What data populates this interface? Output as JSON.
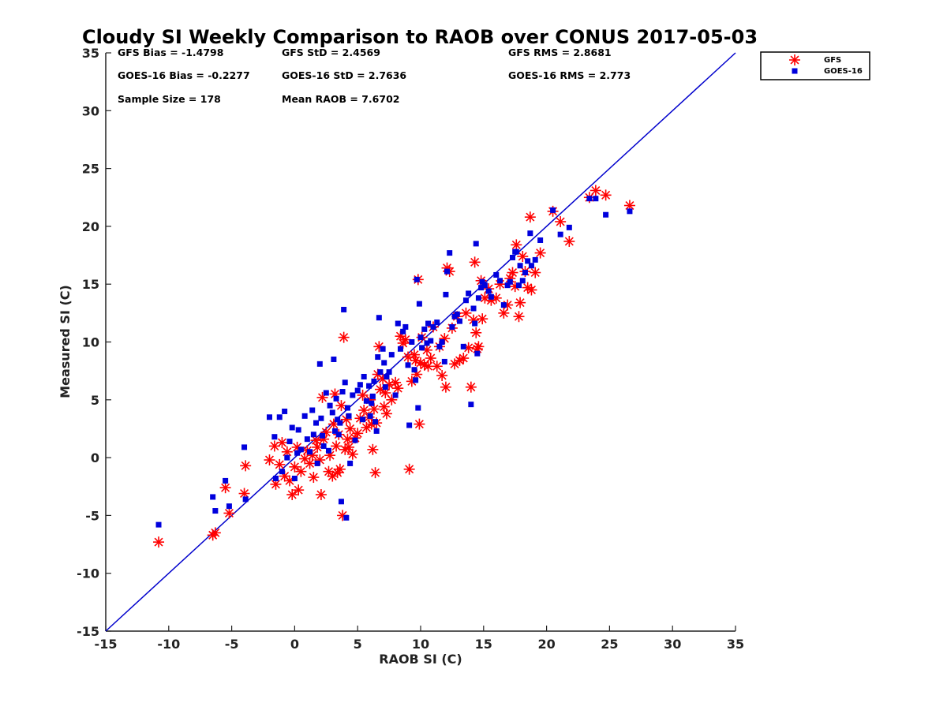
{
  "chart_data": {
    "type": "scatter",
    "title": "Cloudy SI Weekly Comparison to RAOB over CONUS 2017-05-03",
    "xlabel": "RAOB SI (C)",
    "ylabel": "Measured SI (C)",
    "xlim": [
      -15,
      35
    ],
    "ylim": [
      -15,
      35
    ],
    "xticks": [
      -15,
      -10,
      -5,
      0,
      5,
      10,
      15,
      20,
      25,
      30,
      35
    ],
    "yticks": [
      -15,
      -10,
      -5,
      0,
      5,
      10,
      15,
      20,
      25,
      30,
      35
    ],
    "grid": false,
    "legend_position": "top-right-outside",
    "reference_line": {
      "from": [
        -15,
        -15
      ],
      "to": [
        35,
        35
      ],
      "color": "#0000cc"
    },
    "stats": [
      {
        "name": "gfs-bias",
        "text": "GFS Bias = -1.4798"
      },
      {
        "name": "gfs-std",
        "text": "GFS StD = 2.4569"
      },
      {
        "name": "gfs-rms",
        "text": "GFS RMS = 2.8681"
      },
      {
        "name": "goes-bias",
        "text": "GOES-16 Bias = -0.2277"
      },
      {
        "name": "goes-std",
        "text": "GOES-16 StD = 2.7636"
      },
      {
        "name": "goes-rms",
        "text": "GOES-16 RMS = 2.773"
      },
      {
        "name": "sample-size",
        "text": "Sample Size = 178"
      },
      {
        "name": "mean-raob",
        "text": "Mean RAOB = 7.6702"
      }
    ],
    "series": [
      {
        "name": "GFS",
        "marker": "asterisk",
        "color": "#ff0000",
        "points": [
          [
            -10.8,
            -7.3
          ],
          [
            -6.5,
            -6.7
          ],
          [
            -6.3,
            -6.5
          ],
          [
            -5.5,
            -2.6
          ],
          [
            -5.2,
            -4.8
          ],
          [
            -4.0,
            -3.1
          ],
          [
            -3.9,
            -0.7
          ],
          [
            -2.0,
            -0.2
          ],
          [
            -1.6,
            1.0
          ],
          [
            -1.5,
            -2.3
          ],
          [
            -1.2,
            -0.6
          ],
          [
            -1.0,
            1.3
          ],
          [
            -0.8,
            -1.6
          ],
          [
            -0.6,
            0.5
          ],
          [
            -0.4,
            -2.0
          ],
          [
            -0.2,
            -3.2
          ],
          [
            0.0,
            -0.8
          ],
          [
            0.2,
            0.9
          ],
          [
            0.3,
            -2.8
          ],
          [
            0.5,
            -1.2
          ],
          [
            0.8,
            -0.1
          ],
          [
            1.0,
            0.6
          ],
          [
            1.2,
            -0.5
          ],
          [
            1.4,
            0.2
          ],
          [
            1.5,
            -1.7
          ],
          [
            1.7,
            1.5
          ],
          [
            1.8,
            0.9
          ],
          [
            2.0,
            -0.2
          ],
          [
            2.1,
            -3.2
          ],
          [
            2.2,
            5.2
          ],
          [
            2.3,
            1.6
          ],
          [
            2.5,
            2.2
          ],
          [
            2.7,
            -1.2
          ],
          [
            2.8,
            0.2
          ],
          [
            3.0,
            -1.6
          ],
          [
            3.1,
            2.9
          ],
          [
            3.2,
            5.5
          ],
          [
            3.3,
            1.0
          ],
          [
            3.4,
            -1.3
          ],
          [
            3.5,
            2.0
          ],
          [
            3.6,
            -1.0
          ],
          [
            3.7,
            4.5
          ],
          [
            3.8,
            -5.0
          ],
          [
            3.9,
            10.4
          ],
          [
            4.0,
            0.7
          ],
          [
            4.1,
            3.3
          ],
          [
            4.2,
            1.6
          ],
          [
            4.3,
            0.9
          ],
          [
            4.4,
            2.5
          ],
          [
            4.6,
            0.3
          ],
          [
            4.8,
            1.7
          ],
          [
            5.0,
            2.1
          ],
          [
            5.2,
            3.4
          ],
          [
            5.4,
            5.4
          ],
          [
            5.5,
            4.1
          ],
          [
            5.7,
            2.6
          ],
          [
            5.9,
            3.5
          ],
          [
            6.0,
            5.0
          ],
          [
            6.1,
            2.9
          ],
          [
            6.2,
            0.7
          ],
          [
            6.3,
            4.2
          ],
          [
            6.4,
            -1.3
          ],
          [
            6.5,
            3.0
          ],
          [
            6.6,
            7.2
          ],
          [
            6.7,
            9.6
          ],
          [
            6.8,
            5.9
          ],
          [
            7.0,
            6.8
          ],
          [
            7.1,
            4.4
          ],
          [
            7.2,
            5.6
          ],
          [
            7.3,
            3.8
          ],
          [
            7.5,
            6.3
          ],
          [
            7.7,
            5.0
          ],
          [
            8.0,
            6.5
          ],
          [
            8.2,
            6.0
          ],
          [
            8.4,
            10.5
          ],
          [
            8.6,
            9.9
          ],
          [
            8.8,
            10.2
          ],
          [
            9.0,
            8.7
          ],
          [
            9.1,
            -1.0
          ],
          [
            9.3,
            6.6
          ],
          [
            9.5,
            8.9
          ],
          [
            9.6,
            8.4
          ],
          [
            9.7,
            7.2
          ],
          [
            9.8,
            15.4
          ],
          [
            9.9,
            2.9
          ],
          [
            10.0,
            8.2
          ],
          [
            10.1,
            10.4
          ],
          [
            10.3,
            8.0
          ],
          [
            10.5,
            9.3
          ],
          [
            10.6,
            7.9
          ],
          [
            10.8,
            8.6
          ],
          [
            11.0,
            11.3
          ],
          [
            11.3,
            7.9
          ],
          [
            11.5,
            9.6
          ],
          [
            11.7,
            7.1
          ],
          [
            11.9,
            10.3
          ],
          [
            12.0,
            6.1
          ],
          [
            12.1,
            16.4
          ],
          [
            12.3,
            16.1
          ],
          [
            12.5,
            11.2
          ],
          [
            12.7,
            8.1
          ],
          [
            12.9,
            12.2
          ],
          [
            13.1,
            8.4
          ],
          [
            13.4,
            8.6
          ],
          [
            13.6,
            12.5
          ],
          [
            13.8,
            9.5
          ],
          [
            14.0,
            6.1
          ],
          [
            14.2,
            11.9
          ],
          [
            14.3,
            16.9
          ],
          [
            14.4,
            10.8
          ],
          [
            14.5,
            9.4
          ],
          [
            14.6,
            9.6
          ],
          [
            14.8,
            15.3
          ],
          [
            14.9,
            12.0
          ],
          [
            15.1,
            13.8
          ],
          [
            15.4,
            14.6
          ],
          [
            15.6,
            13.6
          ],
          [
            16.0,
            13.8
          ],
          [
            16.3,
            15.0
          ],
          [
            16.6,
            12.5
          ],
          [
            16.9,
            13.2
          ],
          [
            17.1,
            15.5
          ],
          [
            17.3,
            16.0
          ],
          [
            17.5,
            14.8
          ],
          [
            17.6,
            18.4
          ],
          [
            17.8,
            12.2
          ],
          [
            17.9,
            13.4
          ],
          [
            18.1,
            17.4
          ],
          [
            18.3,
            16.1
          ],
          [
            18.5,
            14.7
          ],
          [
            18.7,
            20.8
          ],
          [
            18.8,
            14.5
          ],
          [
            19.1,
            16.0
          ],
          [
            19.5,
            17.7
          ],
          [
            20.5,
            21.3
          ],
          [
            21.1,
            20.4
          ],
          [
            21.8,
            18.7
          ],
          [
            23.4,
            22.5
          ],
          [
            23.9,
            23.1
          ],
          [
            24.7,
            22.7
          ],
          [
            26.6,
            21.8
          ]
        ]
      },
      {
        "name": "GOES-16",
        "marker": "square",
        "color": "#0000dd",
        "points": [
          [
            -10.8,
            -5.8
          ],
          [
            -6.5,
            -3.4
          ],
          [
            -6.3,
            -4.6
          ],
          [
            -5.5,
            -2.0
          ],
          [
            -5.2,
            -4.2
          ],
          [
            -4.0,
            0.9
          ],
          [
            -3.9,
            -3.6
          ],
          [
            -2.0,
            3.5
          ],
          [
            -1.6,
            1.8
          ],
          [
            -1.5,
            -1.8
          ],
          [
            -1.2,
            3.5
          ],
          [
            -1.0,
            -1.2
          ],
          [
            -0.8,
            4.0
          ],
          [
            -0.6,
            0.0
          ],
          [
            -0.4,
            1.4
          ],
          [
            -0.2,
            2.6
          ],
          [
            0.0,
            -1.8
          ],
          [
            0.2,
            0.4
          ],
          [
            0.3,
            2.4
          ],
          [
            0.5,
            0.7
          ],
          [
            0.8,
            3.6
          ],
          [
            1.0,
            1.6
          ],
          [
            1.2,
            0.5
          ],
          [
            1.4,
            4.1
          ],
          [
            1.5,
            2.0
          ],
          [
            1.7,
            3.0
          ],
          [
            1.8,
            -0.5
          ],
          [
            2.0,
            8.1
          ],
          [
            2.1,
            3.4
          ],
          [
            2.2,
            1.9
          ],
          [
            2.3,
            1.0
          ],
          [
            2.5,
            5.6
          ],
          [
            2.7,
            0.6
          ],
          [
            2.8,
            4.5
          ],
          [
            3.0,
            3.9
          ],
          [
            3.1,
            8.5
          ],
          [
            3.2,
            2.3
          ],
          [
            3.3,
            5.1
          ],
          [
            3.4,
            3.3
          ],
          [
            3.5,
            2.0
          ],
          [
            3.6,
            3.0
          ],
          [
            3.7,
            -3.8
          ],
          [
            3.8,
            5.7
          ],
          [
            3.9,
            12.8
          ],
          [
            4.0,
            6.5
          ],
          [
            4.1,
            -5.2
          ],
          [
            4.2,
            4.3
          ],
          [
            4.3,
            3.6
          ],
          [
            4.4,
            -0.5
          ],
          [
            4.6,
            5.4
          ],
          [
            4.8,
            1.5
          ],
          [
            5.0,
            5.8
          ],
          [
            5.2,
            6.3
          ],
          [
            5.4,
            3.3
          ],
          [
            5.5,
            7.0
          ],
          [
            5.7,
            4.9
          ],
          [
            5.9,
            6.2
          ],
          [
            6.0,
            3.6
          ],
          [
            6.1,
            4.7
          ],
          [
            6.2,
            5.3
          ],
          [
            6.3,
            6.6
          ],
          [
            6.4,
            3.1
          ],
          [
            6.5,
            2.3
          ],
          [
            6.6,
            8.7
          ],
          [
            6.7,
            12.1
          ],
          [
            6.8,
            7.4
          ],
          [
            7.0,
            9.4
          ],
          [
            7.1,
            8.2
          ],
          [
            7.2,
            6.1
          ],
          [
            7.3,
            7.0
          ],
          [
            7.5,
            7.4
          ],
          [
            7.7,
            8.9
          ],
          [
            8.0,
            5.4
          ],
          [
            8.2,
            11.6
          ],
          [
            8.4,
            9.4
          ],
          [
            8.6,
            10.9
          ],
          [
            8.8,
            11.3
          ],
          [
            9.0,
            8.0
          ],
          [
            9.1,
            2.8
          ],
          [
            9.3,
            10.0
          ],
          [
            9.5,
            7.6
          ],
          [
            9.6,
            6.7
          ],
          [
            9.7,
            15.4
          ],
          [
            9.8,
            4.3
          ],
          [
            9.9,
            13.3
          ],
          [
            10.0,
            10.4
          ],
          [
            10.1,
            9.5
          ],
          [
            10.3,
            11.1
          ],
          [
            10.5,
            9.9
          ],
          [
            10.6,
            11.6
          ],
          [
            10.8,
            10.1
          ],
          [
            11.0,
            11.3
          ],
          [
            11.3,
            11.7
          ],
          [
            11.5,
            9.6
          ],
          [
            11.7,
            10.0
          ],
          [
            11.9,
            8.3
          ],
          [
            12.0,
            14.1
          ],
          [
            12.1,
            16.1
          ],
          [
            12.3,
            17.7
          ],
          [
            12.5,
            11.3
          ],
          [
            12.7,
            12.2
          ],
          [
            12.9,
            12.4
          ],
          [
            13.1,
            11.8
          ],
          [
            13.4,
            9.6
          ],
          [
            13.6,
            13.6
          ],
          [
            13.8,
            14.2
          ],
          [
            14.0,
            4.6
          ],
          [
            14.2,
            12.9
          ],
          [
            14.3,
            11.6
          ],
          [
            14.4,
            18.5
          ],
          [
            14.5,
            9.0
          ],
          [
            14.6,
            13.8
          ],
          [
            14.8,
            14.7
          ],
          [
            14.9,
            15.2
          ],
          [
            15.1,
            14.9
          ],
          [
            15.4,
            14.4
          ],
          [
            15.6,
            13.9
          ],
          [
            16.0,
            15.8
          ],
          [
            16.3,
            15.3
          ],
          [
            16.6,
            13.2
          ],
          [
            16.9,
            14.9
          ],
          [
            17.1,
            15.2
          ],
          [
            17.3,
            17.3
          ],
          [
            17.5,
            17.8
          ],
          [
            17.6,
            17.8
          ],
          [
            17.8,
            14.9
          ],
          [
            17.9,
            16.6
          ],
          [
            18.1,
            15.3
          ],
          [
            18.3,
            16.0
          ],
          [
            18.5,
            17.0
          ],
          [
            18.7,
            19.4
          ],
          [
            18.8,
            16.6
          ],
          [
            19.1,
            17.1
          ],
          [
            19.5,
            18.8
          ],
          [
            20.5,
            21.4
          ],
          [
            21.1,
            19.3
          ],
          [
            21.8,
            19.9
          ],
          [
            23.4,
            22.4
          ],
          [
            23.9,
            22.4
          ],
          [
            24.7,
            21.0
          ],
          [
            26.6,
            21.3
          ]
        ]
      }
    ]
  }
}
